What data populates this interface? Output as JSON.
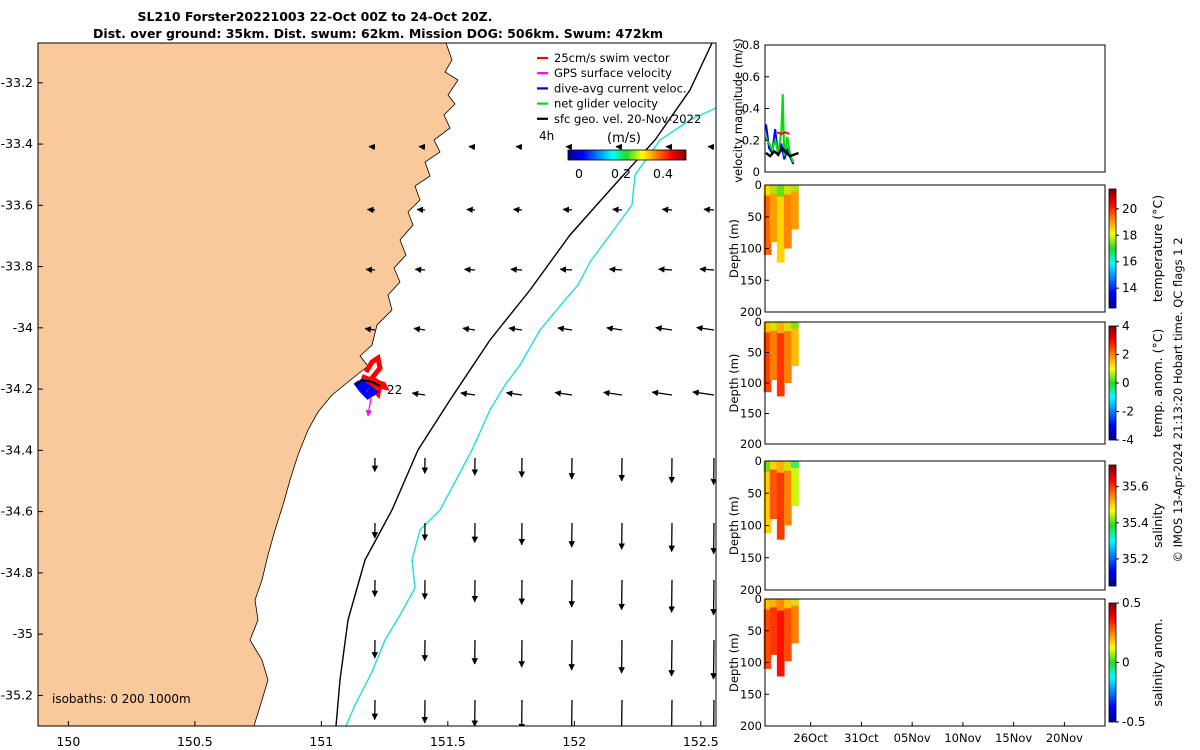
{
  "title": {
    "line1": "SL210 Forster20221003 22-Oct 00Z to 24-Oct 20Z.",
    "line2": "Dist. over ground: 35km. Dist. swum: 62km. Mission DOG: 506km. Swum: 472km"
  },
  "map": {
    "lon_ticks": [
      "150",
      "150.5",
      "151",
      "151.5",
      "152",
      "152.5"
    ],
    "lat_ticks": [
      "-33.2",
      "-33.4",
      "-33.6",
      "-33.8",
      "-34",
      "-34.2",
      "-34.4",
      "-34.6",
      "-34.8",
      "-35",
      "-35.2"
    ],
    "xlim": [
      149.88,
      152.56
    ],
    "ylim": [
      -35.3,
      -33.07
    ],
    "legend": [
      {
        "label": "25cm/s swim vector",
        "color": "#ff0000"
      },
      {
        "label": "GPS surface velocity",
        "color": "#ff00ff"
      },
      {
        "label": "dive-avg current veloc.",
        "color": "#0000ff"
      },
      {
        "label": "net glider velocity",
        "color": "#00dd00"
      },
      {
        "label": "sfc geo. vel. 20-Nov-2022",
        "color": "#000000"
      }
    ],
    "colorbar_label": "(m/s)",
    "colorbar_ticks": [
      "0",
      "0.2",
      "0.4"
    ],
    "isobaths_label": "isobaths: 0   200  1000m",
    "annotation_4h": "4h",
    "annotation_22": "22",
    "land_color": "#f9c89b",
    "isobath_200_color": "#000000",
    "isobath_1000_color": "#22dddd"
  },
  "chart_data": [
    {
      "type": "line",
      "ylabel": "velocity magnitude (m/s)",
      "ylim": [
        0,
        0.8
      ],
      "yticks": [
        "0",
        "0.2",
        "0.4",
        "0.6",
        "0.8"
      ],
      "series": [
        {
          "color": "#0000ff",
          "x": [
            0.1,
            0.4,
            0.7,
            1.0,
            1.3,
            1.6,
            1.9,
            2.2,
            2.5,
            2.8
          ],
          "values": [
            0.3,
            0.15,
            0.12,
            0.27,
            0.1,
            0.18,
            0.08,
            0.14,
            0.09,
            0.05
          ]
        },
        {
          "color": "#00dd00",
          "x": [
            0.1,
            0.4,
            0.7,
            1.0,
            1.3,
            1.6,
            1.75,
            1.9,
            2.2,
            2.5,
            2.8
          ],
          "values": [
            0.22,
            0.18,
            0.14,
            0.2,
            0.12,
            0.25,
            0.49,
            0.1,
            0.22,
            0.1,
            0.06
          ]
        },
        {
          "color": "#000000",
          "x": [
            0.1,
            0.5,
            0.9,
            1.3,
            1.7,
            2.1,
            2.5,
            2.9,
            3.3
          ],
          "values": [
            0.12,
            0.1,
            0.13,
            0.11,
            0.15,
            0.12,
            0.1,
            0.11,
            0.12
          ]
        },
        {
          "color": "#ff0000",
          "x": [
            1.2,
            1.6,
            2.0,
            2.4
          ],
          "values": [
            0.25,
            0.24,
            0.25,
            0.24
          ]
        }
      ]
    },
    {
      "type": "heatmap",
      "ylabel": "Depth (m)",
      "colorbar_label": "temperature (°C)",
      "colorbar_ticks": [
        "14",
        "16",
        "18",
        "20"
      ],
      "clim": [
        12.5,
        21.5
      ],
      "yticks": [
        "0",
        "50",
        "100",
        "150",
        "200"
      ],
      "ylim": [
        0,
        200
      ],
      "columns": [
        {
          "x": 0.2,
          "depth": 110,
          "value": 19.5
        },
        {
          "x": 0.8,
          "depth": 90,
          "value": 19.0
        },
        {
          "x": 1.5,
          "depth": 122,
          "value": 18.5
        },
        {
          "x": 2.2,
          "depth": 100,
          "value": 19.2
        },
        {
          "x": 2.9,
          "depth": 70,
          "value": 19.0
        }
      ]
    },
    {
      "type": "heatmap",
      "ylabel": "Depth (m)",
      "colorbar_label": "temp. anom. (°C)",
      "colorbar_ticks": [
        "-4",
        "-2",
        "0",
        "2",
        "4"
      ],
      "clim": [
        -4,
        4
      ],
      "yticks": [
        "0",
        "50",
        "100",
        "150",
        "200"
      ],
      "ylim": [
        0,
        200
      ],
      "columns": [
        {
          "x": 0.2,
          "depth": 115,
          "value": 2.5
        },
        {
          "x": 0.8,
          "depth": 95,
          "value": 2.0
        },
        {
          "x": 1.5,
          "depth": 122,
          "value": 2.6
        },
        {
          "x": 2.2,
          "depth": 100,
          "value": 2.0
        },
        {
          "x": 2.9,
          "depth": 72,
          "value": 1.5
        }
      ]
    },
    {
      "type": "heatmap",
      "ylabel": "Depth (m)",
      "colorbar_label": "salinity",
      "colorbar_ticks": [
        "35.2",
        "35.4",
        "35.6"
      ],
      "clim": [
        35.05,
        35.72
      ],
      "yticks": [
        "0",
        "50",
        "100",
        "150",
        "200"
      ],
      "ylim": [
        0,
        200
      ],
      "columns": [
        {
          "x": 0.2,
          "depth": 112,
          "value": 35.5
        },
        {
          "x": 0.8,
          "depth": 90,
          "value": 35.58
        },
        {
          "x": 1.5,
          "depth": 122,
          "value": 35.6
        },
        {
          "x": 2.2,
          "depth": 100,
          "value": 35.55
        },
        {
          "x": 2.9,
          "depth": 70,
          "value": 35.45
        }
      ]
    },
    {
      "type": "heatmap",
      "ylabel": "Depth (m)",
      "colorbar_label": "salinity anom.",
      "colorbar_ticks": [
        "-0.5",
        "0",
        "0.5"
      ],
      "clim": [
        -0.5,
        0.5
      ],
      "yticks": [
        "0",
        "50",
        "100",
        "150",
        "200"
      ],
      "ylim": [
        0,
        200
      ],
      "xticks": [
        "26Oct",
        "31Oct",
        "05Nov",
        "10Nov",
        "15Nov",
        "20Nov"
      ],
      "columns": [
        {
          "x": 0.2,
          "depth": 110,
          "value": 0.3
        },
        {
          "x": 0.8,
          "depth": 88,
          "value": 0.32
        },
        {
          "x": 1.5,
          "depth": 122,
          "value": 0.36
        },
        {
          "x": 2.2,
          "depth": 98,
          "value": 0.3
        },
        {
          "x": 2.9,
          "depth": 70,
          "value": 0.25
        }
      ]
    }
  ],
  "time_axis": {
    "xlim": [
      0,
      33.5
    ],
    "tick_days": [
      4.5,
      9.5,
      14.5,
      19.5,
      24.5,
      29.5
    ]
  },
  "side_text": "© IMOS 13-Apr-2024 21:13:20 Hobart time. QC flags 1  2"
}
